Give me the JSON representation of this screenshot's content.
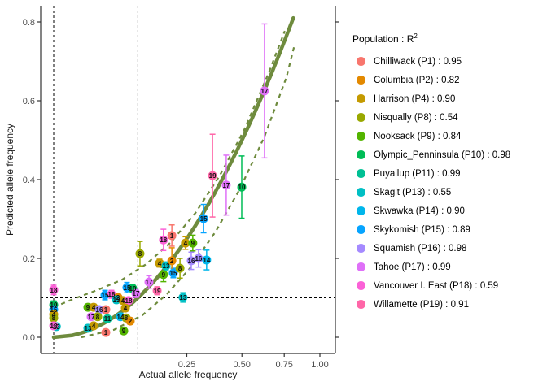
{
  "chart_data": {
    "type": "scatter",
    "xlabel": "Actual allele frequency",
    "ylabel": "Predicted allele frequency",
    "x_scale": "sqrt",
    "xlim": [
      0,
      1.1
    ],
    "ylim": [
      -0.02,
      0.82
    ],
    "x_ticks": [
      {
        "v": 0.25,
        "label": "0.25"
      },
      {
        "v": 0.5,
        "label": "0.50"
      },
      {
        "v": 0.75,
        "label": "0.75"
      },
      {
        "v": 1.0,
        "label": "1.00"
      }
    ],
    "y_ticks": [
      {
        "v": 0.0,
        "label": "0.0"
      },
      {
        "v": 0.2,
        "label": "0.2"
      },
      {
        "v": 0.4,
        "label": "0.4"
      },
      {
        "v": 0.6,
        "label": "0.6"
      },
      {
        "v": 0.8,
        "label": "0.8"
      }
    ],
    "grid": false,
    "reference": {
      "vlines": [
        0.0,
        0.1
      ],
      "hline": 0.1,
      "style": "dashed",
      "color": "#000000"
    },
    "trend": {
      "type": "identity y = x",
      "color": "#6E8B3D",
      "x_max": 0.81,
      "ci_upper": [
        [
          0,
          0.076
        ],
        [
          0.0054,
          0.097
        ],
        [
          0.0273,
          0.12
        ],
        [
          0.066,
          0.146
        ],
        [
          0.1215,
          0.186
        ],
        [
          0.194,
          0.241
        ],
        [
          0.283,
          0.315
        ],
        [
          0.389,
          0.41
        ],
        [
          0.512,
          0.526
        ],
        [
          0.652,
          0.67
        ],
        [
          0.754,
          0.777
        ]
      ],
      "ci_lower": [
        [
          0.0108,
          0.0
        ],
        [
          0.0512,
          0.019
        ],
        [
          0.1111,
          0.056
        ],
        [
          0.1807,
          0.109
        ],
        [
          0.267,
          0.179
        ],
        [
          0.37,
          0.268
        ],
        [
          0.49,
          0.377
        ],
        [
          0.627,
          0.509
        ],
        [
          0.765,
          0.66
        ],
        [
          0.819,
          0.742
        ]
      ]
    },
    "populations": [
      {
        "id": "P1",
        "name": "Chilliwack",
        "r2": "0.95",
        "color": "#F8766D",
        "label": "Chilliwack (P1) : 0.95"
      },
      {
        "id": "P2",
        "name": "Columbia",
        "r2": "0.82",
        "color": "#E38900",
        "label": "Columbia (P2) : 0.82"
      },
      {
        "id": "P4",
        "name": "Harrison",
        "r2": "0.90",
        "color": "#C49A00",
        "label": "Harrison (P4) : 0.90"
      },
      {
        "id": "P8",
        "name": "Nisqually",
        "r2": "0.54",
        "color": "#99A800",
        "label": "Nisqually (P8) : 0.54"
      },
      {
        "id": "P9",
        "name": "Nooksack",
        "r2": "0.84",
        "color": "#53B400",
        "label": "Nooksack (P9) : 0.84"
      },
      {
        "id": "P10",
        "name": "Olympic_Penninsula",
        "r2": "0.98",
        "color": "#00BC56",
        "label": "Olympic_Penninsula (P10) : 0.98"
      },
      {
        "id": "P11",
        "name": "Puyallup",
        "r2": "0.99",
        "color": "#00C094",
        "label": "Puyallup (P11) : 0.99"
      },
      {
        "id": "P13",
        "name": "Skagit",
        "r2": "0.55",
        "color": "#00BFC4",
        "label": "Skagit (P13) : 0.55"
      },
      {
        "id": "P14",
        "name": "Skwawka",
        "r2": "0.90",
        "color": "#00B6EB",
        "label": "Skwawka (P14) : 0.90"
      },
      {
        "id": "P15",
        "name": "Skykomish",
        "r2": "0.89",
        "color": "#06A4FF",
        "label": "Skykomish (P15) : 0.89"
      },
      {
        "id": "P16",
        "name": "Squamish",
        "r2": "0.98",
        "color": "#A58AFF",
        "label": "Squamish (P16) : 0.98"
      },
      {
        "id": "P17",
        "name": "Tahoe",
        "r2": "0.99",
        "color": "#DF70F8",
        "label": "Tahoe (P17) : 0.99"
      },
      {
        "id": "P18",
        "name": "Vancouver I. East",
        "r2": "0.59",
        "color": "#FB61D7",
        "label": "Vancouver I. East (P18) : 0.59"
      },
      {
        "id": "P19",
        "name": "Willamette",
        "r2": "0.91",
        "color": "#FF66A8",
        "label": "Willamette (P19) : 0.91"
      }
    ],
    "points": [
      {
        "p": "P18",
        "x": 0,
        "y": 0.12,
        "e": 0.012
      },
      {
        "p": "P10",
        "x": 0,
        "y": 0.082,
        "e": 0.01
      },
      {
        "p": "P15",
        "x": 0,
        "y": 0.07,
        "e": 0.008
      },
      {
        "p": "P4",
        "x": 0,
        "y": 0.058,
        "e": 0.008
      },
      {
        "p": "P8",
        "x": 0,
        "y": 0.049,
        "e": 0.008
      },
      {
        "p": "P13",
        "x": 0.0001,
        "y": 0.027,
        "e": 0.006
      },
      {
        "p": "P18",
        "x": 0,
        "y": 0.029,
        "e": 0.006
      },
      {
        "p": "P9",
        "x": 0.0165,
        "y": 0.076,
        "e": 0.008
      },
      {
        "p": "P4",
        "x": 0.0225,
        "y": 0.076,
        "e": 0.008
      },
      {
        "p": "P13",
        "x": 0.0165,
        "y": 0.023,
        "e": 0.006
      },
      {
        "p": "P4",
        "x": 0.0225,
        "y": 0.029,
        "e": 0.006
      },
      {
        "p": "P16",
        "x": 0.0293,
        "y": 0.07,
        "e": 0.008
      },
      {
        "p": "P1",
        "x": 0.0383,
        "y": 0.07,
        "e": 0.008
      },
      {
        "p": "P15",
        "x": 0.0371,
        "y": 0.107,
        "e": 0.012
      },
      {
        "p": "P18",
        "x": 0.0471,
        "y": 0.109,
        "e": 0.01
      },
      {
        "p": "P2",
        "x": 0.0584,
        "y": 0.101,
        "e": 0.01
      },
      {
        "p": "P17",
        "x": 0.0198,
        "y": 0.052,
        "e": 0.006
      },
      {
        "p": "P8",
        "x": 0.0273,
        "y": 0.052,
        "e": 0.006
      },
      {
        "p": "P11",
        "x": 0.0407,
        "y": 0.047,
        "e": 0.006
      },
      {
        "p": "P14",
        "x": 0.0629,
        "y": 0.052,
        "e": 0.008
      },
      {
        "p": "P8",
        "x": 0.0741,
        "y": 0.049,
        "e": 0.008
      },
      {
        "p": "P2",
        "x": 0.0826,
        "y": 0.041,
        "e": 0.008
      },
      {
        "p": "P13",
        "x": 0.0555,
        "y": 0.095,
        "e": 0.008
      },
      {
        "p": "P4",
        "x": 0.0676,
        "y": 0.093,
        "e": 0.008
      },
      {
        "p": "P18",
        "x": 0.0791,
        "y": 0.093,
        "e": 0.008
      },
      {
        "p": "P4",
        "x": 0.0724,
        "y": 0.074,
        "e": 0.008
      },
      {
        "p": "P1",
        "x": 0.0383,
        "y": 0.012,
        "e": 0.006
      },
      {
        "p": "P9",
        "x": 0.0692,
        "y": 0.016,
        "e": 0.006
      },
      {
        "p": "P15",
        "x": 0.0757,
        "y": 0.126,
        "e": 0.013
      },
      {
        "p": "P10",
        "x": 0.088,
        "y": 0.124,
        "e": 0.01
      },
      {
        "p": "P17",
        "x": 0.0954,
        "y": 0.111,
        "e": 0.01
      },
      {
        "p": "P17",
        "x": 0.128,
        "y": 0.14,
        "e": 0.016
      },
      {
        "p": "P19",
        "x": 0.151,
        "y": 0.118,
        "e": 0.01
      },
      {
        "p": "P9",
        "x": 0.17,
        "y": 0.159,
        "e": 0.018
      },
      {
        "p": "P15",
        "x": 0.202,
        "y": 0.163,
        "e": 0.012
      },
      {
        "p": "P8",
        "x": 0.105,
        "y": 0.212,
        "e": 0.031
      },
      {
        "p": "P13",
        "x": 0.236,
        "y": 0.101,
        "e": 0.012
      },
      {
        "p": "P18",
        "x": 0.17,
        "y": 0.247,
        "e": 0.027
      },
      {
        "p": "P1",
        "x": 0.197,
        "y": 0.258,
        "e": 0.027
      },
      {
        "p": "P4",
        "x": 0.245,
        "y": 0.239,
        "e": 0.016
      },
      {
        "p": "P9",
        "x": 0.273,
        "y": 0.239,
        "e": 0.02
      },
      {
        "p": "P4",
        "x": 0.158,
        "y": 0.188,
        "e": 0.01
      },
      {
        "p": "P13",
        "x": 0.178,
        "y": 0.181,
        "e": 0.01
      },
      {
        "p": "P2",
        "x": 0.197,
        "y": 0.194,
        "e": 0.033
      },
      {
        "p": "P8",
        "x": 0.225,
        "y": 0.175,
        "e": 0.025
      },
      {
        "p": "P16",
        "x": 0.267,
        "y": 0.194,
        "e": 0.022
      },
      {
        "p": "P16",
        "x": 0.296,
        "y": 0.2,
        "e": 0.022
      },
      {
        "p": "P14",
        "x": 0.33,
        "y": 0.196,
        "e": 0.025
      },
      {
        "p": "P15",
        "x": 0.317,
        "y": 0.301,
        "e": 0.036
      },
      {
        "p": "P19",
        "x": 0.356,
        "y": 0.41,
        "e": 0.105
      },
      {
        "p": "P17",
        "x": 0.42,
        "y": 0.386,
        "e": 0.076
      },
      {
        "p": "P10",
        "x": 0.499,
        "y": 0.381,
        "e": 0.079
      },
      {
        "p": "P17",
        "x": 0.627,
        "y": 0.625,
        "e": 0.17
      }
    ]
  },
  "legend": {
    "title_base": "Population : R",
    "title_sup": "2"
  },
  "axes": {
    "x_title": "Actual allele frequency",
    "y_title": "Predicted allele frequency"
  }
}
